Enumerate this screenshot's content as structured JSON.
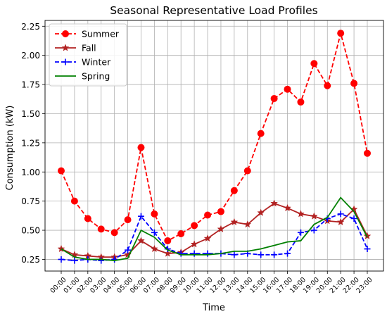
{
  "chart_data": {
    "type": "line",
    "title": "Seasonal Representative Load Profiles",
    "xlabel": "Time",
    "ylabel": "Consumption (kW)",
    "categories": [
      "00:00",
      "01:00",
      "02:00",
      "03:00",
      "04:00",
      "05:00",
      "06:00",
      "07:00",
      "08:00",
      "09:00",
      "10:00",
      "11:00",
      "12:00",
      "13:00",
      "14:00",
      "15:00",
      "16:00",
      "17:00",
      "18:00",
      "19:00",
      "20:00",
      "21:00",
      "22:00",
      "23:00"
    ],
    "ylim": [
      0.15,
      2.3
    ],
    "yticks": [
      0.25,
      0.5,
      0.75,
      1.0,
      1.25,
      1.5,
      1.75,
      2.0,
      2.25
    ],
    "ytick_labels": [
      "0.25",
      "0.50",
      "0.75",
      "1.00",
      "1.25",
      "1.50",
      "1.75",
      "2.00",
      "2.25"
    ],
    "grid": true,
    "legend_position": "top-left",
    "series": [
      {
        "name": "Summer",
        "color": "#ff0000",
        "linestyle": "dashed",
        "marker": "circle",
        "values": [
          1.01,
          0.75,
          0.6,
          0.51,
          0.48,
          0.59,
          1.21,
          0.64,
          0.41,
          0.47,
          0.54,
          0.63,
          0.66,
          0.84,
          1.01,
          1.33,
          1.63,
          1.71,
          1.6,
          1.93,
          1.74,
          2.19,
          1.76,
          1.16
        ]
      },
      {
        "name": "Fall",
        "color": "#b22222",
        "linestyle": "solid",
        "marker": "star",
        "values": [
          0.34,
          0.29,
          0.28,
          0.27,
          0.27,
          0.29,
          0.41,
          0.34,
          0.3,
          0.31,
          0.38,
          0.43,
          0.51,
          0.57,
          0.55,
          0.65,
          0.73,
          0.69,
          0.64,
          0.62,
          0.58,
          0.57,
          0.68,
          0.45
        ]
      },
      {
        "name": "Winter",
        "color": "#0000ff",
        "linestyle": "dashed",
        "marker": "plus",
        "values": [
          0.25,
          0.24,
          0.25,
          0.24,
          0.25,
          0.33,
          0.62,
          0.48,
          0.34,
          0.3,
          0.3,
          0.3,
          0.3,
          0.29,
          0.3,
          0.29,
          0.29,
          0.3,
          0.48,
          0.5,
          0.6,
          0.64,
          0.6,
          0.34
        ]
      },
      {
        "name": "Spring",
        "color": "#008000",
        "linestyle": "solid",
        "marker": "none",
        "values": [
          0.34,
          0.27,
          0.25,
          0.25,
          0.24,
          0.26,
          0.5,
          0.44,
          0.33,
          0.29,
          0.29,
          0.29,
          0.3,
          0.32,
          0.32,
          0.34,
          0.37,
          0.4,
          0.41,
          0.55,
          0.61,
          0.78,
          0.66,
          0.44
        ]
      }
    ]
  }
}
